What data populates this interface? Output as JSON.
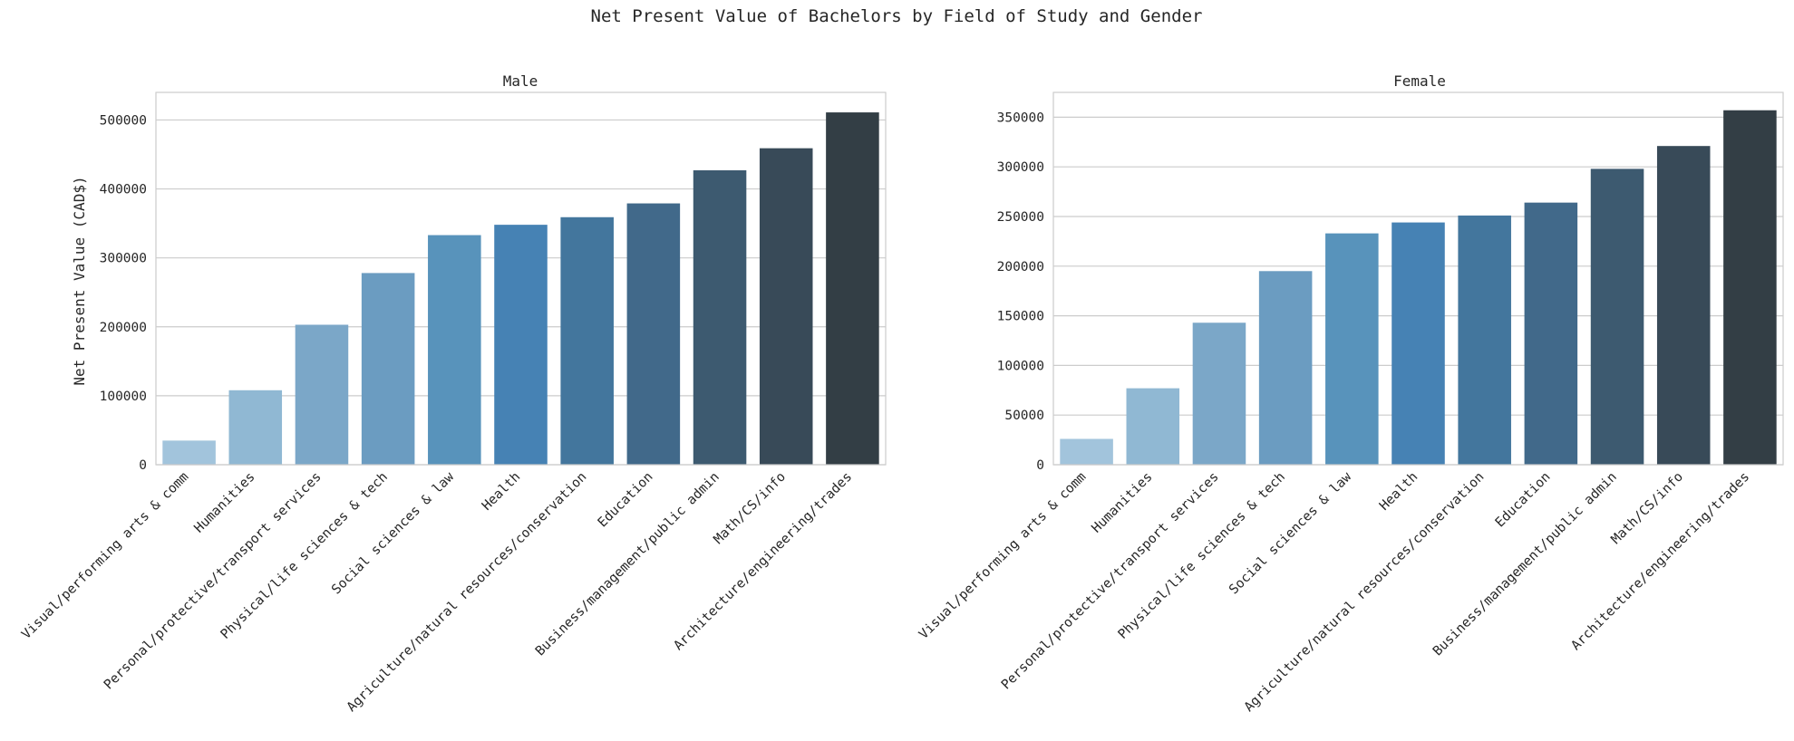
{
  "figure": {
    "suptitle": "Net Present Value of Bachelors by Field of Study and Gender"
  },
  "palette": [
    "#a2c4dc",
    "#90b8d3",
    "#7ba7c8",
    "#6b9cc1",
    "#5893bb",
    "#4682b4",
    "#43769d",
    "#41698a",
    "#3d5a70",
    "#384a58",
    "#333e45"
  ],
  "chart_data": [
    {
      "type": "bar",
      "title": "Male",
      "xlabel": "",
      "ylabel": "Net Present Value (CAD$)",
      "ylim": [
        0,
        540000
      ],
      "yticks": [
        0,
        100000,
        200000,
        300000,
        400000,
        500000
      ],
      "ytick_labels": [
        "0",
        "100000",
        "200000",
        "300000",
        "400000",
        "500000"
      ],
      "grid": true,
      "categories": [
        "Visual/performing arts & comm",
        "Humanities",
        "Personal/protective/transport services",
        "Physical/life sciences & tech",
        "Social sciences & law",
        "Health",
        "Agriculture/natural resources/conservation",
        "Education",
        "Business/management/public admin",
        "Math/CS/info",
        "Architecture/engineering/trades"
      ],
      "values": [
        35000,
        108000,
        203000,
        278000,
        333000,
        348000,
        359000,
        379000,
        427000,
        459000,
        511000
      ]
    },
    {
      "type": "bar",
      "title": "Female",
      "xlabel": "",
      "ylabel": "",
      "ylim": [
        0,
        375000
      ],
      "yticks": [
        0,
        50000,
        100000,
        150000,
        200000,
        250000,
        300000,
        350000
      ],
      "ytick_labels": [
        "0",
        "50000",
        "100000",
        "150000",
        "200000",
        "250000",
        "300000",
        "350000"
      ],
      "grid": true,
      "categories": [
        "Visual/performing arts & comm",
        "Humanities",
        "Personal/protective/transport services",
        "Physical/life sciences & tech",
        "Social sciences & law",
        "Health",
        "Agriculture/natural resources/conservation",
        "Education",
        "Business/management/public admin",
        "Math/CS/info",
        "Architecture/engineering/trades"
      ],
      "values": [
        26000,
        77000,
        143000,
        195000,
        233000,
        244000,
        251000,
        264000,
        298000,
        321000,
        357000
      ]
    }
  ]
}
